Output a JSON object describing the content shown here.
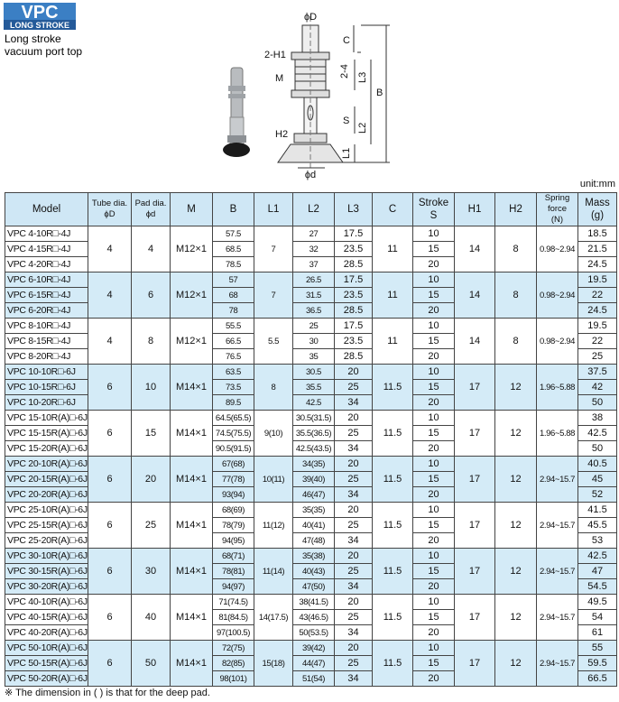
{
  "header": {
    "badge": "VPC",
    "badge_sub": "LONG STROKE",
    "subtitle_1": "Long stroke",
    "subtitle_2": "vacuum port  top"
  },
  "diagram": {
    "labels": {
      "phi_D": "ϕD",
      "C": "C",
      "two_H1": "2-H1",
      "M": "M",
      "L3": "L3",
      "two_4": "2-4",
      "B": "B",
      "S": "S",
      "L2": "L2",
      "H2": "H2",
      "L1": "L1",
      "phi_d": "ϕd"
    }
  },
  "unit": "unit:mm",
  "table": {
    "columns": [
      "Model",
      "Tube dia.\nϕD",
      "Pad dia.\nϕd",
      "M",
      "B",
      "L1",
      "L2",
      "L3",
      "C",
      "Stroke\nS",
      "H1",
      "H2",
      "Spring force\n(N)",
      "Mass\n(g)"
    ],
    "groups": [
      {
        "tube": "4",
        "pad": "4",
        "m": "M12×1",
        "l1": "7",
        "c": "11",
        "h1": "14",
        "h2": "8",
        "spring": "0.98~2.94",
        "rows": [
          {
            "model": "VPC 4-10R□-4J",
            "b": "57.5",
            "l2": "27",
            "l3": "17.5",
            "stroke": "10",
            "mass": "18.5"
          },
          {
            "model": "VPC 4-15R□-4J",
            "b": "68.5",
            "l2": "32",
            "l3": "23.5",
            "stroke": "15",
            "mass": "21.5"
          },
          {
            "model": "VPC 4-20R□-4J",
            "b": "78.5",
            "l2": "37",
            "l3": "28.5",
            "stroke": "20",
            "mass": "24.5"
          }
        ]
      },
      {
        "tube": "4",
        "pad": "6",
        "m": "M12×1",
        "l1": "7",
        "c": "11",
        "h1": "14",
        "h2": "8",
        "spring": "0.98~2.94",
        "rows": [
          {
            "model": "VPC 6-10R□-4J",
            "b": "57",
            "l2": "26.5",
            "l3": "17.5",
            "stroke": "10",
            "mass": "19.5"
          },
          {
            "model": "VPC 6-15R□-4J",
            "b": "68",
            "l2": "31.5",
            "l3": "23.5",
            "stroke": "15",
            "mass": "22"
          },
          {
            "model": "VPC 6-20R□-4J",
            "b": "78",
            "l2": "36.5",
            "l3": "28.5",
            "stroke": "20",
            "mass": "24.5"
          }
        ]
      },
      {
        "tube": "4",
        "pad": "8",
        "m": "M12×1",
        "l1": "5.5",
        "c": "11",
        "h1": "14",
        "h2": "8",
        "spring": "0.98~2.94",
        "rows": [
          {
            "model": "VPC 8-10R□-4J",
            "b": "55.5",
            "l2": "25",
            "l3": "17.5",
            "stroke": "10",
            "mass": "19.5"
          },
          {
            "model": "VPC 8-15R□-4J",
            "b": "66.5",
            "l2": "30",
            "l3": "23.5",
            "stroke": "15",
            "mass": "22"
          },
          {
            "model": "VPC 8-20R□-4J",
            "b": "76.5",
            "l2": "35",
            "l3": "28.5",
            "stroke": "20",
            "mass": "25"
          }
        ]
      },
      {
        "tube": "6",
        "pad": "10",
        "m": "M14×1",
        "l1": "8",
        "c": "11.5",
        "h1": "17",
        "h2": "12",
        "spring": "1.96~5.88",
        "rows": [
          {
            "model": "VPC 10-10R□-6J",
            "b": "63.5",
            "l2": "30.5",
            "l3": "20",
            "stroke": "10",
            "mass": "37.5"
          },
          {
            "model": "VPC 10-15R□-6J",
            "b": "73.5",
            "l2": "35.5",
            "l3": "25",
            "stroke": "15",
            "mass": "42"
          },
          {
            "model": "VPC 10-20R□-6J",
            "b": "89.5",
            "l2": "42.5",
            "l3": "34",
            "stroke": "20",
            "mass": "50"
          }
        ]
      },
      {
        "tube": "6",
        "pad": "15",
        "m": "M14×1",
        "l1": "9(10)",
        "c": "11.5",
        "h1": "17",
        "h2": "12",
        "spring": "1.96~5.88",
        "rows": [
          {
            "model": "VPC 15-10R(A)□-6J",
            "b": "64.5(65.5)",
            "l2": "30.5(31.5)",
            "l3": "20",
            "stroke": "10",
            "mass": "38"
          },
          {
            "model": "VPC 15-15R(A)□-6J",
            "b": "74.5(75.5)",
            "l2": "35.5(36.5)",
            "l3": "25",
            "stroke": "15",
            "mass": "42.5"
          },
          {
            "model": "VPC 15-20R(A)□-6J",
            "b": "90.5(91.5)",
            "l2": "42.5(43.5)",
            "l3": "34",
            "stroke": "20",
            "mass": "50"
          }
        ]
      },
      {
        "tube": "6",
        "pad": "20",
        "m": "M14×1",
        "l1": "10(11)",
        "c": "11.5",
        "h1": "17",
        "h2": "12",
        "spring": "2.94~15.7",
        "rows": [
          {
            "model": "VPC 20-10R(A)□-6J",
            "b": "67(68)",
            "l2": "34(35)",
            "l3": "20",
            "stroke": "10",
            "mass": "40.5"
          },
          {
            "model": "VPC 20-15R(A)□-6J",
            "b": "77(78)",
            "l2": "39(40)",
            "l3": "25",
            "stroke": "15",
            "mass": "45"
          },
          {
            "model": "VPC 20-20R(A)□-6J",
            "b": "93(94)",
            "l2": "46(47)",
            "l3": "34",
            "stroke": "20",
            "mass": "52"
          }
        ]
      },
      {
        "tube": "6",
        "pad": "25",
        "m": "M14×1",
        "l1": "11(12)",
        "c": "11.5",
        "h1": "17",
        "h2": "12",
        "spring": "2.94~15.7",
        "rows": [
          {
            "model": "VPC 25-10R(A)□-6J",
            "b": "68(69)",
            "l2": "35(35)",
            "l3": "20",
            "stroke": "10",
            "mass": "41.5"
          },
          {
            "model": "VPC 25-15R(A)□-6J",
            "b": "78(79)",
            "l2": "40(41)",
            "l3": "25",
            "stroke": "15",
            "mass": "45.5"
          },
          {
            "model": "VPC 25-20R(A)□-6J",
            "b": "94(95)",
            "l2": "47(48)",
            "l3": "34",
            "stroke": "20",
            "mass": "53"
          }
        ]
      },
      {
        "tube": "6",
        "pad": "30",
        "m": "M14×1",
        "l1": "11(14)",
        "c": "11.5",
        "h1": "17",
        "h2": "12",
        "spring": "2.94~15.7",
        "rows": [
          {
            "model": "VPC 30-10R(A)□-6J",
            "b": "68(71)",
            "l2": "35(38)",
            "l3": "20",
            "stroke": "10",
            "mass": "42.5"
          },
          {
            "model": "VPC 30-15R(A)□-6J",
            "b": "78(81)",
            "l2": "40(43)",
            "l3": "25",
            "stroke": "15",
            "mass": "47"
          },
          {
            "model": "VPC 30-20R(A)□-6J",
            "b": "94(97)",
            "l2": "47(50)",
            "l3": "34",
            "stroke": "20",
            "mass": "54.5"
          }
        ]
      },
      {
        "tube": "6",
        "pad": "40",
        "m": "M14×1",
        "l1": "14(17.5)",
        "c": "11.5",
        "h1": "17",
        "h2": "12",
        "spring": "2.94~15.7",
        "rows": [
          {
            "model": "VPC 40-10R(A)□-6J",
            "b": "71(74.5)",
            "l2": "38(41.5)",
            "l3": "20",
            "stroke": "10",
            "mass": "49.5"
          },
          {
            "model": "VPC 40-15R(A)□-6J",
            "b": "81(84.5)",
            "l2": "43(46.5)",
            "l3": "25",
            "stroke": "15",
            "mass": "54"
          },
          {
            "model": "VPC 40-20R(A)□-6J",
            "b": "97(100.5)",
            "l2": "50(53.5)",
            "l3": "34",
            "stroke": "20",
            "mass": "61"
          }
        ]
      },
      {
        "tube": "6",
        "pad": "50",
        "m": "M14×1",
        "l1": "15(18)",
        "c": "11.5",
        "h1": "17",
        "h2": "12",
        "spring": "2.94~15.7",
        "rows": [
          {
            "model": "VPC 50-10R(A)□-6J",
            "b": "72(75)",
            "l2": "39(42)",
            "l3": "20",
            "stroke": "10",
            "mass": "55"
          },
          {
            "model": "VPC 50-15R(A)□-6J",
            "b": "82(85)",
            "l2": "44(47)",
            "l3": "25",
            "stroke": "15",
            "mass": "59.5"
          },
          {
            "model": "VPC 50-20R(A)□-6J",
            "b": "98(101)",
            "l2": "51(54)",
            "l3": "34",
            "stroke": "20",
            "mass": "66.5"
          }
        ]
      }
    ]
  },
  "footnote": "※ The dimension in ( ) is that for the deep pad."
}
